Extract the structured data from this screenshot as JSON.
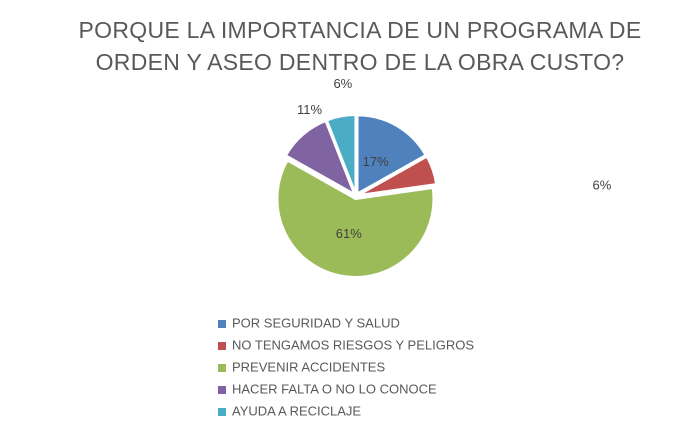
{
  "chart_data": {
    "type": "pie",
    "title": "PORQUE LA IMPORTANCIA DE UN PROGRAMA DE ORDEN Y ASEO DENTRO DE LA OBRA CUSTO?",
    "categories": [
      "POR SEGURIDAD Y SALUD",
      "NO TENGAMOS RIESGOS Y PELIGROS",
      "PREVENIR ACCIDENTES",
      "HACER FALTA O NO LO CONOCE",
      "AYUDA A RECICLAJE"
    ],
    "values": [
      17,
      6,
      61,
      11,
      6
    ],
    "value_labels": [
      "17%",
      "6%",
      "61%",
      "11%",
      "6%"
    ],
    "colors": [
      "#4f81bd",
      "#c0504d",
      "#9bbb59",
      "#8064a2",
      "#4bacc6"
    ],
    "legend": "bottom"
  }
}
